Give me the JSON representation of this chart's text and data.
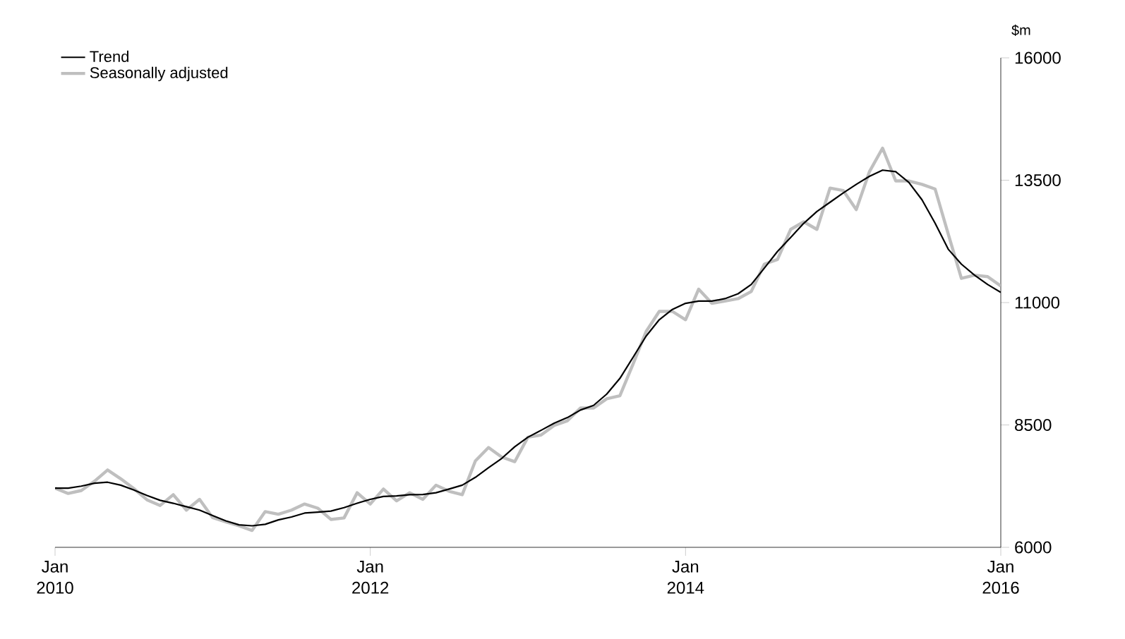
{
  "chart_data": {
    "type": "line",
    "ylabel": "$m",
    "x": [
      "2010-01",
      "2010-02",
      "2010-03",
      "2010-04",
      "2010-05",
      "2010-06",
      "2010-07",
      "2010-08",
      "2010-09",
      "2010-10",
      "2010-11",
      "2010-12",
      "2011-01",
      "2011-02",
      "2011-03",
      "2011-04",
      "2011-05",
      "2011-06",
      "2011-07",
      "2011-08",
      "2011-09",
      "2011-10",
      "2011-11",
      "2011-12",
      "2012-01",
      "2012-02",
      "2012-03",
      "2012-04",
      "2012-05",
      "2012-06",
      "2012-07",
      "2012-08",
      "2012-09",
      "2012-10",
      "2012-11",
      "2012-12",
      "2013-01",
      "2013-02",
      "2013-03",
      "2013-04",
      "2013-05",
      "2013-06",
      "2013-07",
      "2013-08",
      "2013-09",
      "2013-10",
      "2013-11",
      "2013-12",
      "2014-01",
      "2014-02",
      "2014-03",
      "2014-04",
      "2014-05",
      "2014-06",
      "2014-07",
      "2014-08",
      "2014-09",
      "2014-10",
      "2014-11",
      "2014-12",
      "2015-01",
      "2015-02",
      "2015-03",
      "2015-04",
      "2015-05",
      "2015-06",
      "2015-07",
      "2015-08",
      "2015-09",
      "2015-10",
      "2015-11",
      "2015-12",
      "2016-01"
    ],
    "series": [
      {
        "name": "Trend",
        "color": "#000000",
        "values": [
          7210,
          7210,
          7250,
          7310,
          7330,
          7270,
          7170,
          7060,
          6960,
          6900,
          6830,
          6760,
          6650,
          6540,
          6460,
          6440,
          6470,
          6560,
          6620,
          6700,
          6720,
          6740,
          6810,
          6900,
          6980,
          7040,
          7050,
          7075,
          7080,
          7115,
          7190,
          7270,
          7430,
          7625,
          7815,
          8055,
          8250,
          8390,
          8535,
          8650,
          8805,
          8900,
          9130,
          9450,
          9880,
          10315,
          10650,
          10860,
          10985,
          11030,
          11030,
          11080,
          11180,
          11370,
          11705,
          12045,
          12330,
          12620,
          12860,
          13050,
          13240,
          13415,
          13580,
          13705,
          13675,
          13455,
          13100,
          12620,
          12090,
          11785,
          11560,
          11370,
          11210
        ]
      },
      {
        "name": "Seasonally adjusted",
        "color": "#bfbfbf",
        "values": [
          7210,
          7100,
          7160,
          7350,
          7580,
          7400,
          7200,
          6970,
          6855,
          7075,
          6760,
          6980,
          6605,
          6520,
          6440,
          6345,
          6730,
          6675,
          6760,
          6885,
          6800,
          6570,
          6600,
          7115,
          6885,
          7190,
          6950,
          7115,
          6980,
          7270,
          7145,
          7075,
          7765,
          8040,
          7845,
          7750,
          8250,
          8295,
          8490,
          8585,
          8845,
          8845,
          9035,
          9095,
          9740,
          10410,
          10820,
          10820,
          10650,
          11275,
          10985,
          11030,
          11080,
          11225,
          11785,
          11880,
          12495,
          12650,
          12495,
          13340,
          13290,
          12900,
          13675,
          14155,
          13485,
          13485,
          13415,
          13320,
          12400,
          11495,
          11560,
          11530,
          11340
        ]
      }
    ],
    "xlim": [
      "2010-01",
      "2016-01"
    ],
    "xticks": [
      {
        "value": "2010-01",
        "label": "Jan 2010"
      },
      {
        "value": "2012-01",
        "label": "Jan 2012"
      },
      {
        "value": "2014-01",
        "label": "Jan 2014"
      },
      {
        "value": "2016-01",
        "label": "Jan 2016"
      }
    ],
    "ylim": [
      6000,
      16000
    ],
    "yticks": [
      6000,
      8500,
      11000,
      13500,
      16000
    ],
    "legend": "top left",
    "grid": false,
    "marker": "none",
    "line_style": "solid"
  }
}
